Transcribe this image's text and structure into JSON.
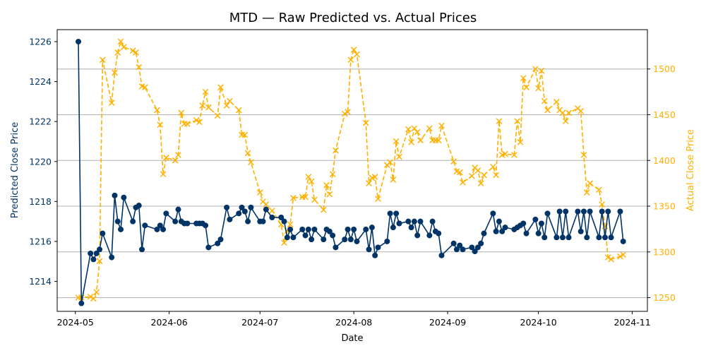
{
  "chart_data": {
    "type": "line",
    "title": "MTD — Raw Predicted vs. Actual Prices",
    "xlabel": "Date",
    "ylabel_left": "Predicted Close Price",
    "ylabel_right": "Actual Close Price",
    "x_ticks": [
      "2024-05",
      "2024-06",
      "2024-07",
      "2024-08",
      "2024-09",
      "2024-10",
      "2024-11"
    ],
    "x_range": [
      "2024-04-25",
      "2024-11-06"
    ],
    "left_ylim": [
      1212.5,
      1226.6
    ],
    "left_ticks": [
      1214,
      1216,
      1218,
      1220,
      1222,
      1224,
      1226
    ],
    "right_ylim": [
      1235,
      1543
    ],
    "right_ticks": [
      1250,
      1300,
      1350,
      1400,
      1450,
      1500
    ],
    "grid": "horizontal lines on right axis",
    "left_color": "#003366",
    "right_color": "#FFB000",
    "series": [
      {
        "axis": "left",
        "marker": "circle",
        "line": "solid",
        "points": [
          [
            "2024-05-02",
            1226.0
          ],
          [
            "2024-05-03",
            1212.9
          ],
          [
            "2024-05-06",
            1215.4
          ],
          [
            "2024-05-07",
            1215.1
          ],
          [
            "2024-05-08",
            1215.4
          ],
          [
            "2024-05-09",
            1215.6
          ],
          [
            "2024-05-10",
            1216.4
          ],
          [
            "2024-05-13",
            1215.2
          ],
          [
            "2024-05-14",
            1218.3
          ],
          [
            "2024-05-15",
            1217.0
          ],
          [
            "2024-05-16",
            1216.6
          ],
          [
            "2024-05-17",
            1218.2
          ],
          [
            "2024-05-20",
            1217.0
          ],
          [
            "2024-05-21",
            1217.7
          ],
          [
            "2024-05-22",
            1217.8
          ],
          [
            "2024-05-23",
            1215.6
          ],
          [
            "2024-05-24",
            1216.8
          ],
          [
            "2024-05-28",
            1216.6
          ],
          [
            "2024-05-29",
            1216.8
          ],
          [
            "2024-05-30",
            1216.6
          ],
          [
            "2024-05-31",
            1217.4
          ],
          [
            "2024-06-03",
            1217.0
          ],
          [
            "2024-06-04",
            1217.6
          ],
          [
            "2024-06-05",
            1217.0
          ],
          [
            "2024-06-06",
            1216.9
          ],
          [
            "2024-06-07",
            1216.9
          ],
          [
            "2024-06-10",
            1216.9
          ],
          [
            "2024-06-11",
            1216.9
          ],
          [
            "2024-06-12",
            1216.9
          ],
          [
            "2024-06-13",
            1216.8
          ],
          [
            "2024-06-14",
            1215.7
          ],
          [
            "2024-06-17",
            1215.9
          ],
          [
            "2024-06-18",
            1216.1
          ],
          [
            "2024-06-20",
            1217.7
          ],
          [
            "2024-06-21",
            1217.1
          ],
          [
            "2024-06-24",
            1217.4
          ],
          [
            "2024-06-25",
            1217.7
          ],
          [
            "2024-06-26",
            1217.5
          ],
          [
            "2024-06-27",
            1217.0
          ],
          [
            "2024-06-28",
            1217.7
          ],
          [
            "2024-07-01",
            1217.0
          ],
          [
            "2024-07-02",
            1217.0
          ],
          [
            "2024-07-03",
            1217.6
          ],
          [
            "2024-07-05",
            1217.2
          ],
          [
            "2024-07-08",
            1217.2
          ],
          [
            "2024-07-09",
            1217.0
          ],
          [
            "2024-07-10",
            1216.2
          ],
          [
            "2024-07-11",
            1216.6
          ],
          [
            "2024-07-12",
            1216.2
          ],
          [
            "2024-07-15",
            1216.6
          ],
          [
            "2024-07-16",
            1216.3
          ],
          [
            "2024-07-17",
            1216.6
          ],
          [
            "2024-07-18",
            1216.1
          ],
          [
            "2024-07-19",
            1216.6
          ],
          [
            "2024-07-22",
            1216.1
          ],
          [
            "2024-07-23",
            1216.6
          ],
          [
            "2024-07-24",
            1216.5
          ],
          [
            "2024-07-25",
            1216.3
          ],
          [
            "2024-07-26",
            1215.7
          ],
          [
            "2024-07-29",
            1216.1
          ],
          [
            "2024-07-30",
            1216.6
          ],
          [
            "2024-07-31",
            1216.1
          ],
          [
            "2024-08-01",
            1216.6
          ],
          [
            "2024-08-02",
            1216.0
          ],
          [
            "2024-08-05",
            1216.6
          ],
          [
            "2024-08-06",
            1215.6
          ],
          [
            "2024-08-07",
            1216.7
          ],
          [
            "2024-08-08",
            1215.3
          ],
          [
            "2024-08-09",
            1215.7
          ],
          [
            "2024-08-12",
            1216.0
          ],
          [
            "2024-08-13",
            1217.4
          ],
          [
            "2024-08-14",
            1216.7
          ],
          [
            "2024-08-15",
            1217.4
          ],
          [
            "2024-08-16",
            1216.9
          ],
          [
            "2024-08-19",
            1217.0
          ],
          [
            "2024-08-20",
            1216.7
          ],
          [
            "2024-08-21",
            1217.0
          ],
          [
            "2024-08-22",
            1216.3
          ],
          [
            "2024-08-23",
            1217.0
          ],
          [
            "2024-08-26",
            1216.3
          ],
          [
            "2024-08-27",
            1217.0
          ],
          [
            "2024-08-28",
            1216.5
          ],
          [
            "2024-08-29",
            1216.4
          ],
          [
            "2024-08-30",
            1215.3
          ],
          [
            "2024-09-03",
            1215.9
          ],
          [
            "2024-09-04",
            1215.6
          ],
          [
            "2024-09-05",
            1215.8
          ],
          [
            "2024-09-06",
            1215.6
          ],
          [
            "2024-09-09",
            1215.7
          ],
          [
            "2024-09-10",
            1215.5
          ],
          [
            "2024-09-11",
            1215.7
          ],
          [
            "2024-09-12",
            1215.9
          ],
          [
            "2024-09-13",
            1216.4
          ],
          [
            "2024-09-16",
            1217.4
          ],
          [
            "2024-09-17",
            1216.5
          ],
          [
            "2024-09-18",
            1217.0
          ],
          [
            "2024-09-19",
            1216.5
          ],
          [
            "2024-09-20",
            1216.7
          ],
          [
            "2024-09-23",
            1216.6
          ],
          [
            "2024-09-24",
            1216.7
          ],
          [
            "2024-09-25",
            1216.8
          ],
          [
            "2024-09-26",
            1216.9
          ],
          [
            "2024-09-27",
            1216.4
          ],
          [
            "2024-09-30",
            1217.1
          ],
          [
            "2024-10-01",
            1216.4
          ],
          [
            "2024-10-02",
            1216.9
          ],
          [
            "2024-10-03",
            1216.2
          ],
          [
            "2024-10-04",
            1217.4
          ],
          [
            "2024-10-07",
            1216.2
          ],
          [
            "2024-10-08",
            1217.5
          ],
          [
            "2024-10-09",
            1216.2
          ],
          [
            "2024-10-10",
            1217.5
          ],
          [
            "2024-10-11",
            1216.2
          ],
          [
            "2024-10-14",
            1217.5
          ],
          [
            "2024-10-15",
            1216.5
          ],
          [
            "2024-10-16",
            1217.5
          ],
          [
            "2024-10-17",
            1216.2
          ],
          [
            "2024-10-18",
            1217.5
          ],
          [
            "2024-10-21",
            1216.2
          ],
          [
            "2024-10-22",
            1217.5
          ],
          [
            "2024-10-23",
            1216.2
          ],
          [
            "2024-10-24",
            1217.5
          ],
          [
            "2024-10-25",
            1216.2
          ],
          [
            "2024-10-28",
            1217.5
          ],
          [
            "2024-10-29",
            1216.0
          ]
        ]
      },
      {
        "axis": "right",
        "marker": "x",
        "line": "dashed",
        "points": [
          [
            "2024-05-02",
            1250
          ],
          [
            "2024-05-03",
            1250
          ],
          [
            "2024-05-06",
            1251
          ],
          [
            "2024-05-07",
            1249
          ],
          [
            "2024-05-08",
            1256
          ],
          [
            "2024-05-09",
            1290
          ],
          [
            "2024-05-10",
            1510
          ],
          [
            "2024-05-13",
            1463
          ],
          [
            "2024-05-14",
            1496
          ],
          [
            "2024-05-15",
            1518
          ],
          [
            "2024-05-16",
            1530
          ],
          [
            "2024-05-17",
            1524
          ],
          [
            "2024-05-20",
            1520
          ],
          [
            "2024-05-21",
            1518
          ],
          [
            "2024-05-22",
            1502
          ],
          [
            "2024-05-23",
            1481
          ],
          [
            "2024-05-24",
            1480
          ],
          [
            "2024-05-28",
            1455
          ],
          [
            "2024-05-29",
            1439
          ],
          [
            "2024-05-30",
            1385
          ],
          [
            "2024-05-31",
            1403
          ],
          [
            "2024-06-03",
            1400
          ],
          [
            "2024-06-04",
            1406
          ],
          [
            "2024-06-05",
            1452
          ],
          [
            "2024-06-06",
            1440
          ],
          [
            "2024-06-07",
            1440
          ],
          [
            "2024-06-10",
            1444
          ],
          [
            "2024-06-11",
            1442
          ],
          [
            "2024-06-12",
            1460
          ],
          [
            "2024-06-13",
            1475
          ],
          [
            "2024-06-14",
            1458
          ],
          [
            "2024-06-17",
            1449
          ],
          [
            "2024-06-18",
            1480
          ],
          [
            "2024-06-20",
            1460
          ],
          [
            "2024-06-21",
            1465
          ],
          [
            "2024-06-24",
            1455
          ],
          [
            "2024-06-25",
            1428
          ],
          [
            "2024-06-26",
            1428
          ],
          [
            "2024-06-27",
            1408
          ],
          [
            "2024-06-28",
            1398
          ],
          [
            "2024-07-01",
            1365
          ],
          [
            "2024-07-02",
            1355
          ],
          [
            "2024-07-03",
            1352
          ],
          [
            "2024-07-05",
            1345
          ],
          [
            "2024-07-08",
            1330
          ],
          [
            "2024-07-09",
            1310
          ],
          [
            "2024-07-10",
            1323
          ],
          [
            "2024-07-11",
            1330
          ],
          [
            "2024-07-12",
            1359
          ],
          [
            "2024-07-15",
            1360
          ],
          [
            "2024-07-16",
            1360
          ],
          [
            "2024-07-17",
            1382
          ],
          [
            "2024-07-18",
            1377
          ],
          [
            "2024-07-19",
            1357
          ],
          [
            "2024-07-22",
            1346
          ],
          [
            "2024-07-23",
            1373
          ],
          [
            "2024-07-24",
            1363
          ],
          [
            "2024-07-25",
            1385
          ],
          [
            "2024-07-26",
            1411
          ],
          [
            "2024-07-29",
            1451
          ],
          [
            "2024-07-30",
            1453
          ],
          [
            "2024-07-31",
            1510
          ],
          [
            "2024-08-01",
            1521
          ],
          [
            "2024-08-02",
            1516
          ],
          [
            "2024-08-05",
            1441
          ],
          [
            "2024-08-06",
            1375
          ],
          [
            "2024-08-07",
            1381
          ],
          [
            "2024-08-08",
            1382
          ],
          [
            "2024-08-09",
            1358
          ],
          [
            "2024-08-12",
            1395
          ],
          [
            "2024-08-13",
            1398
          ],
          [
            "2024-08-14",
            1379
          ],
          [
            "2024-08-15",
            1421
          ],
          [
            "2024-08-16",
            1404
          ],
          [
            "2024-08-19",
            1434
          ],
          [
            "2024-08-20",
            1420
          ],
          [
            "2024-08-21",
            1435
          ],
          [
            "2024-08-22",
            1431
          ],
          [
            "2024-08-23",
            1422
          ],
          [
            "2024-08-26",
            1435
          ],
          [
            "2024-08-27",
            1422
          ],
          [
            "2024-08-28",
            1422
          ],
          [
            "2024-08-29",
            1422
          ],
          [
            "2024-08-30",
            1438
          ],
          [
            "2024-09-03",
            1399
          ],
          [
            "2024-09-04",
            1388
          ],
          [
            "2024-09-05",
            1387
          ],
          [
            "2024-09-06",
            1376
          ],
          [
            "2024-09-09",
            1383
          ],
          [
            "2024-09-10",
            1392
          ],
          [
            "2024-09-11",
            1389
          ],
          [
            "2024-09-12",
            1375
          ],
          [
            "2024-09-13",
            1384
          ],
          [
            "2024-09-16",
            1393
          ],
          [
            "2024-09-17",
            1384
          ],
          [
            "2024-09-18",
            1443
          ],
          [
            "2024-09-19",
            1406
          ],
          [
            "2024-09-20",
            1407
          ],
          [
            "2024-09-23",
            1406
          ],
          [
            "2024-09-24",
            1443
          ],
          [
            "2024-09-25",
            1420
          ],
          [
            "2024-09-26",
            1490
          ],
          [
            "2024-09-27",
            1480
          ],
          [
            "2024-09-30",
            1500
          ],
          [
            "2024-10-01",
            1479
          ],
          [
            "2024-10-02",
            1498
          ],
          [
            "2024-10-03",
            1465
          ],
          [
            "2024-10-04",
            1455
          ],
          [
            "2024-10-07",
            1464
          ],
          [
            "2024-10-08",
            1455
          ],
          [
            "2024-10-09",
            1452
          ],
          [
            "2024-10-10",
            1443
          ],
          [
            "2024-10-11",
            1452
          ],
          [
            "2024-10-14",
            1457
          ],
          [
            "2024-10-15",
            1454
          ],
          [
            "2024-10-16",
            1406
          ],
          [
            "2024-10-17",
            1365
          ],
          [
            "2024-10-18",
            1375
          ],
          [
            "2024-10-21",
            1368
          ],
          [
            "2024-10-22",
            1352
          ],
          [
            "2024-10-23",
            1328
          ],
          [
            "2024-10-24",
            1294
          ],
          [
            "2024-10-25",
            1292
          ],
          [
            "2024-10-28",
            1295
          ],
          [
            "2024-10-29",
            1297
          ]
        ]
      }
    ]
  }
}
